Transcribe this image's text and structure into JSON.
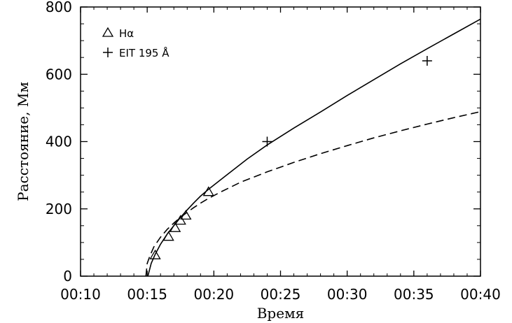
{
  "chart_data": {
    "type": "line",
    "title": "",
    "xlabel": "Время",
    "ylabel": "Расстояние, Мм",
    "x_unit": "minutes after 00:00",
    "xlim": [
      10,
      40
    ],
    "ylim": [
      0,
      800
    ],
    "xticks": [
      {
        "value": 10,
        "label": "00:10"
      },
      {
        "value": 15,
        "label": "00:15"
      },
      {
        "value": 20,
        "label": "00:20"
      },
      {
        "value": 25,
        "label": "00:25"
      },
      {
        "value": 30,
        "label": "00:30"
      },
      {
        "value": 35,
        "label": "00:35"
      },
      {
        "value": 40,
        "label": "00:40"
      }
    ],
    "yticks": [
      {
        "value": 0,
        "label": "0"
      },
      {
        "value": 200,
        "label": "200"
      },
      {
        "value": 400,
        "label": "400"
      },
      {
        "value": 600,
        "label": "600"
      },
      {
        "value": 800,
        "label": "800"
      }
    ],
    "legend": {
      "position": "top-left",
      "entries": [
        {
          "marker": "triangle",
          "label": "Hα"
        },
        {
          "marker": "plus",
          "label": "EIT 195 Å"
        }
      ]
    },
    "series": [
      {
        "name": "Hα",
        "kind": "markers",
        "marker": "triangle",
        "x": [
          15.6,
          16.6,
          17.1,
          17.5,
          17.9,
          19.6
        ],
        "y": [
          62,
          117,
          143,
          165,
          180,
          250
        ]
      },
      {
        "name": "EIT 195 Å",
        "kind": "markers",
        "marker": "plus",
        "x": [
          24.0,
          36.0
        ],
        "y": [
          400,
          640
        ]
      },
      {
        "kind": "line",
        "style": "solid",
        "x": [
          15.05,
          15.3,
          15.6,
          16.0,
          16.5,
          17.0,
          17.5,
          18.0,
          18.5,
          19.0,
          19.6,
          21.0,
          22.5,
          24.0,
          26.0,
          28.0,
          30.0,
          32.0,
          34.0,
          36.0,
          38.0,
          40.0
        ],
        "y": [
          0,
          38,
          65,
          95,
          125,
          150,
          175,
          197,
          218,
          238,
          258,
          302,
          348,
          390,
          440,
          488,
          537,
          584,
          631,
          676,
          720,
          764
        ]
      },
      {
        "kind": "line",
        "style": "dashed",
        "x": [
          14.9,
          15.0,
          15.2,
          15.5,
          16.0,
          16.5,
          17.0,
          17.5,
          18.0,
          18.5,
          19.0,
          19.6,
          20.5,
          22.0,
          24.0,
          26.0,
          28.0,
          30.0,
          32.0,
          34.0,
          36.0,
          38.0,
          40.0
        ],
        "y": [
          0,
          38,
          60,
          87,
          116,
          139,
          158,
          175,
          190,
          204,
          217,
          231,
          250,
          279,
          310,
          338,
          364,
          388,
          411,
          432,
          452,
          471,
          489
        ]
      }
    ]
  }
}
